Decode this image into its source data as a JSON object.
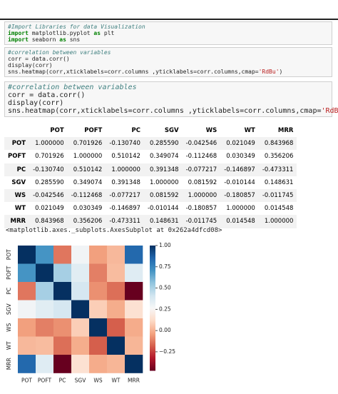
{
  "cells": [
    {
      "lines": [
        "#Import Libraries for data Visualization",
        "import matplotlib.pyplot as plt",
        "import seaborn as sns"
      ]
    },
    {
      "lines": [
        "#correlation between variables",
        "corr = data.corr()",
        "display(corr)",
        "sns.heatmap(corr,xticklabels=corr.columns ,yticklabels=corr.columns,cmap='RdBu')"
      ]
    },
    {
      "lines": [
        "#correlation between variables",
        "corr = data.corr()",
        "display(corr)",
        "sns.heatmap(corr,xticklabels=corr.columns ,yticklabels=corr.columns,cmap='RdBu')"
      ]
    }
  ],
  "table": {
    "columns": [
      "POT",
      "POFT",
      "PC",
      "SGV",
      "WS",
      "WT",
      "MRR"
    ],
    "rows": [
      [
        "POT",
        "1.000000",
        "0.701926",
        "-0.130740",
        "0.285590",
        "-0.042546",
        "0.021049",
        "0.843968"
      ],
      [
        "POFT",
        "0.701926",
        "1.000000",
        "0.510142",
        "0.349074",
        "-0.112468",
        "0.030349",
        "0.356206"
      ],
      [
        "PC",
        "-0.130740",
        "0.510142",
        "1.000000",
        "0.391348",
        "-0.077217",
        "-0.146897",
        "-0.473311"
      ],
      [
        "SGV",
        "0.285590",
        "0.349074",
        "0.391348",
        "1.000000",
        "0.081592",
        "-0.010144",
        "0.148631"
      ],
      [
        "WS",
        "-0.042546",
        "-0.112468",
        "-0.077217",
        "0.081592",
        "1.000000",
        "-0.180857",
        "-0.011745"
      ],
      [
        "WT",
        "0.021049",
        "0.030349",
        "-0.146897",
        "-0.010144",
        "-0.180857",
        "1.000000",
        "0.014548"
      ],
      [
        "MRR",
        "0.843968",
        "0.356206",
        "-0.473311",
        "0.148631",
        "-0.011745",
        "0.014548",
        "1.000000"
      ]
    ]
  },
  "output": "<matplotlib.axes._subplots.AxesSubplot at 0x262a4dfcd08>",
  "heatmap": {
    "type": "heatmap",
    "cmap": "RdBu",
    "colorbar": {
      "lim": [
        -0.473311,
        1
      ],
      "ticks": [
        {
          "value": 1,
          "label": "1.00"
        },
        {
          "value": 0.75,
          "label": "0.75"
        },
        {
          "value": 0.5,
          "label": "0.50"
        },
        {
          "value": 0.25,
          "label": "0.25"
        },
        {
          "value": 0,
          "label": "0.00"
        },
        {
          "value": -0.25,
          "label": "−0.25"
        }
      ]
    }
  }
}
